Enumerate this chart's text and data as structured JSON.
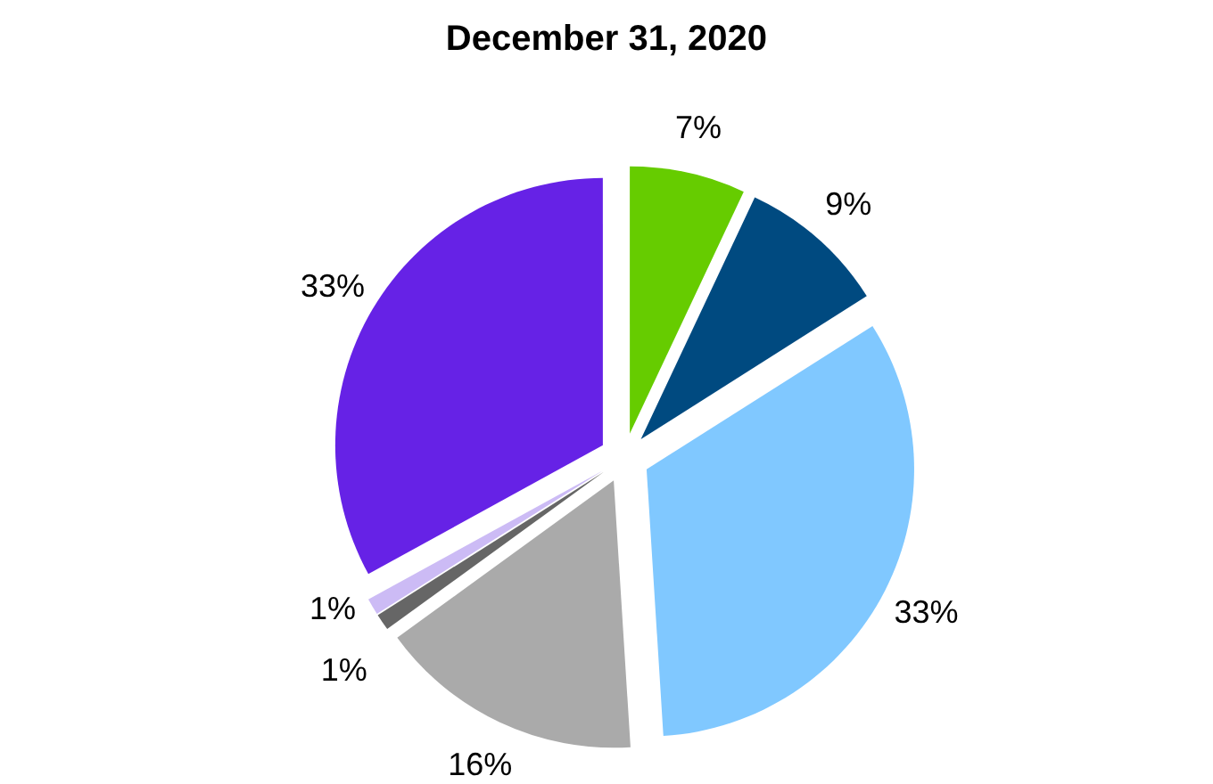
{
  "chart_data": {
    "type": "pie",
    "title": "December 31, 2020",
    "categories": [
      null,
      null,
      null,
      null,
      null,
      null,
      null
    ],
    "values": [
      7,
      9,
      33,
      16,
      1,
      1,
      33
    ],
    "value_labels": [
      "7%",
      "9%",
      "33%",
      "16%",
      "1%",
      "1%",
      "33%"
    ],
    "colors": [
      "#66cc00",
      "#004a80",
      "#80c8ff",
      "#aaaaaa",
      "#666666",
      "#ccbbf5",
      "#6622e6"
    ]
  }
}
